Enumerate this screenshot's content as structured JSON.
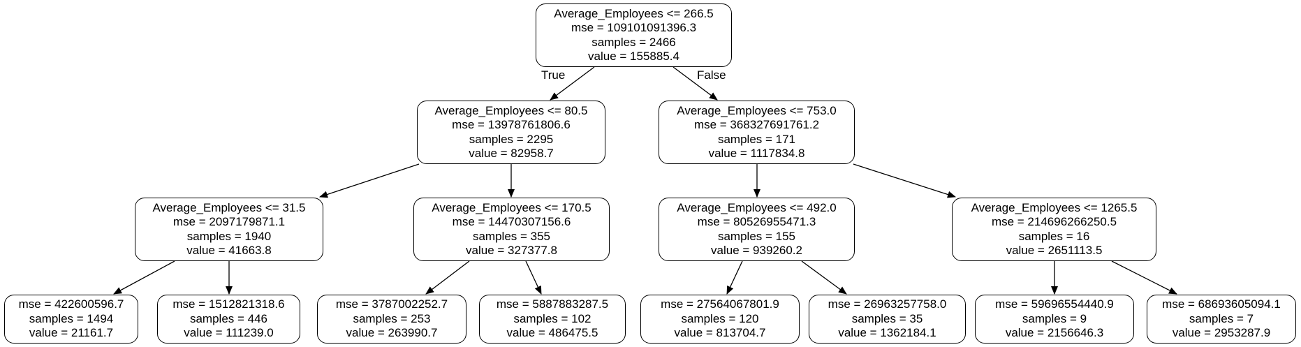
{
  "labels": {
    "true_branch": "True",
    "false_branch": "False"
  },
  "nodes": {
    "n0": {
      "split": "Average_Employees <= 266.5",
      "mse": "mse = 109101091396.3",
      "samples": "samples = 2466",
      "value": "value = 155885.4"
    },
    "n1": {
      "split": "Average_Employees <= 80.5",
      "mse": "mse = 13978761806.6",
      "samples": "samples = 2295",
      "value": "value = 82958.7"
    },
    "n2": {
      "split": "Average_Employees <= 753.0",
      "mse": "mse = 368327691761.2",
      "samples": "samples = 171",
      "value": "value = 1117834.8"
    },
    "n3": {
      "split": "Average_Employees <= 31.5",
      "mse": "mse = 2097179871.1",
      "samples": "samples = 1940",
      "value": "value = 41663.8"
    },
    "n4": {
      "split": "Average_Employees <= 170.5",
      "mse": "mse = 14470307156.6",
      "samples": "samples = 355",
      "value": "value = 327377.8"
    },
    "n5": {
      "split": "Average_Employees <= 492.0",
      "mse": "mse = 80526955471.3",
      "samples": "samples = 155",
      "value": "value = 939260.2"
    },
    "n6": {
      "split": "Average_Employees <= 1265.5",
      "mse": "mse = 214696266250.5",
      "samples": "samples = 16",
      "value": "value = 2651113.5"
    },
    "n7": {
      "mse": "mse = 422600596.7",
      "samples": "samples = 1494",
      "value": "value = 21161.7"
    },
    "n8": {
      "mse": "mse = 1512821318.6",
      "samples": "samples = 446",
      "value": "value = 111239.0"
    },
    "n9": {
      "mse": "mse = 3787002252.7",
      "samples": "samples = 253",
      "value": "value = 263990.7"
    },
    "n10": {
      "mse": "mse = 5887883287.5",
      "samples": "samples = 102",
      "value": "value = 486475.5"
    },
    "n11": {
      "mse": "mse = 27564067801.9",
      "samples": "samples = 120",
      "value": "value = 813704.7"
    },
    "n12": {
      "mse": "mse = 26963257758.0",
      "samples": "samples = 35",
      "value": "value = 1362184.1"
    },
    "n13": {
      "mse": "mse = 59696554440.9",
      "samples": "samples = 9",
      "value": "value = 2156646.3"
    },
    "n14": {
      "mse": "mse = 68693605094.1",
      "samples": "samples = 7",
      "value": "value = 2953287.9"
    }
  }
}
